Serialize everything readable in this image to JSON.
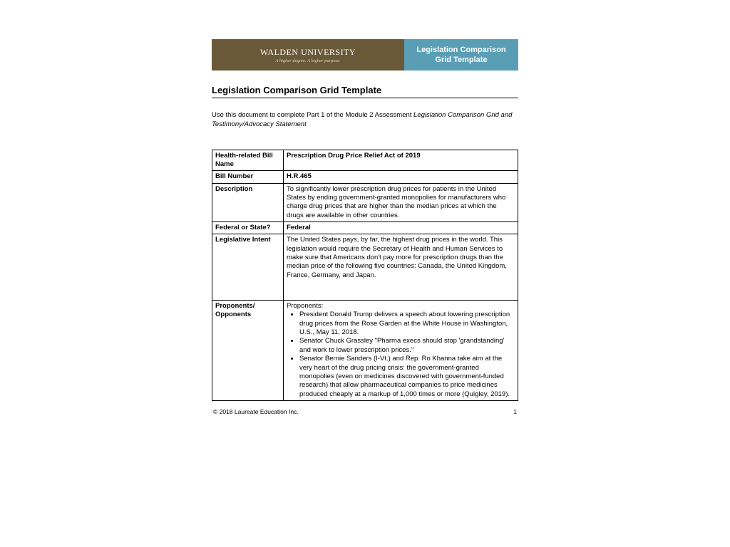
{
  "banner": {
    "university": "WALDEN UNIVERSITY",
    "tagline": "A higher degree. A higher purpose.",
    "title_line1": "Legislation Comparison",
    "title_line2": "Grid Template",
    "left_bg": "#6a5938",
    "right_bg": "#5a9eb5"
  },
  "doc_title": "Legislation Comparison Grid Template",
  "instruction_plain": "Use this document to complete Part 1 of the Module 2 Assessment ",
  "instruction_italic": "Legislation Comparison Grid and Testimony/Advocacy Statement",
  "grid": {
    "rows": [
      {
        "label": "Health-related Bill Name",
        "value": "Prescription Drug Price Relief Act of 2019",
        "bold_value": true
      },
      {
        "label": "Bill Number",
        "value": "H.R.465",
        "bold_value": true
      },
      {
        "label": "Description",
        "value": "To significantly lower prescription drug prices for patients in the United States by ending government-granted monopolies for manufacturers who charge drug prices that are higher than the median prices at which the drugs are available in other countries.",
        "bold_value": false
      },
      {
        "label": "Federal or State?",
        "value": "Federal",
        "bold_value": true
      },
      {
        "label": "Legislative Intent",
        "value": "The United States pays, by far, the highest drug prices in the world. This legislation would require the Secretary of Health and Human Services to make sure that Americans don't pay more for prescription drugs than the median price of the following five countries: Canada, the United Kingdom, France, Germany, and Japan.",
        "bold_value": false,
        "extra_height": true
      }
    ],
    "proponents_label": "Proponents/ Opponents",
    "proponents_heading": "Proponents:",
    "proponents_items": [
      "President Donald Trump delivers a speech about lowering prescription drug prices from the Rose Garden at the White House in Washington, U.S., May 11, 2018.",
      "Senator Chuck Grassley \"Pharma execs should stop 'grandstanding' and work to lower prescription prices.\"",
      "Senator Bernie Sanders (I-Vt.) and Rep. Ro Khanna take aim at the very heart of the drug pricing crisis: the government-granted monopolies (even on medicines discovered with government-funded research) that allow pharmaceutical companies to price medicines produced cheaply at a markup of 1,000 times or more (Quigley, 2019)."
    ]
  },
  "footer": {
    "copyright": "© 2018 Laureate Education Inc.",
    "page": "1"
  }
}
